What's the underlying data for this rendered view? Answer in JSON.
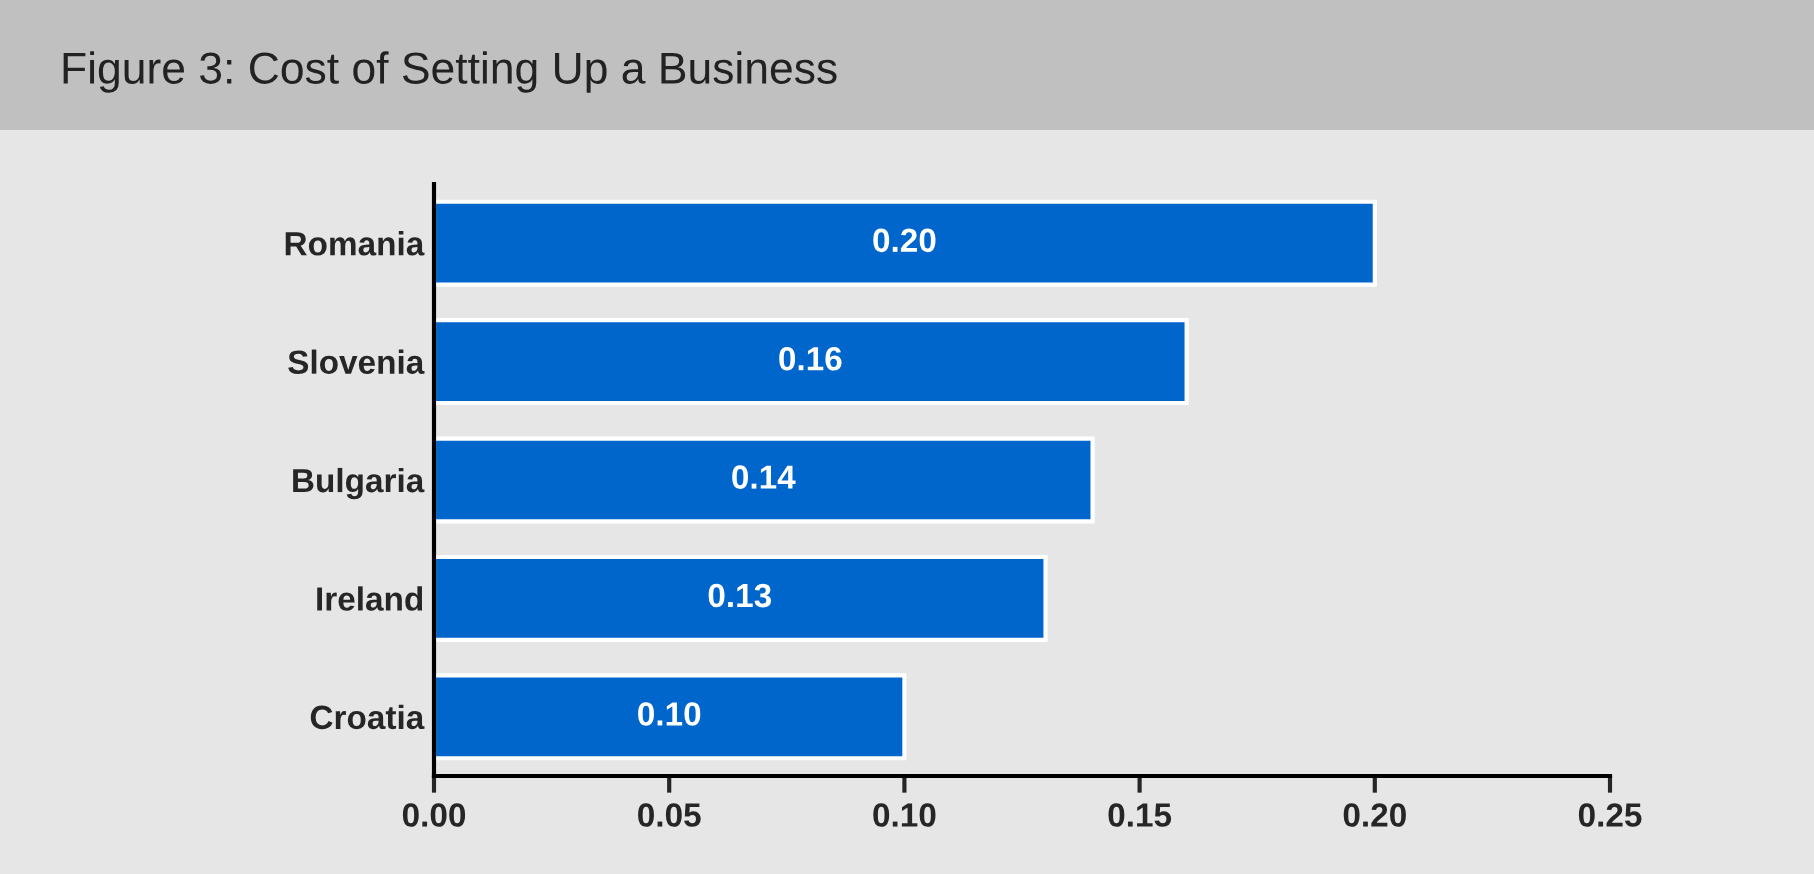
{
  "chart_data": {
    "type": "bar",
    "orientation": "horizontal",
    "title": "Figure 3: Cost of Setting Up a Business",
    "categories": [
      "Romania",
      "Slovenia",
      "Bulgaria",
      "Ireland",
      "Croatia"
    ],
    "values": [
      0.2,
      0.16,
      0.14,
      0.13,
      0.1
    ],
    "color": "#0066cc",
    "xlim": [
      0,
      0.25
    ],
    "xticks": [
      {
        "value": 0,
        "label": "0.00"
      },
      {
        "value": 0.05,
        "label": "0.05"
      },
      {
        "value": 0.1,
        "label": "0.10"
      },
      {
        "value": 0.15,
        "label": "0.15"
      },
      {
        "value": 0.2,
        "label": "0.20"
      },
      {
        "value": 0.25,
        "label": "0.25"
      }
    ],
    "value_labels": [
      "0.20",
      "0.16",
      "0.14",
      "0.13",
      "0.10"
    ],
    "grid": false,
    "legend": false
  }
}
